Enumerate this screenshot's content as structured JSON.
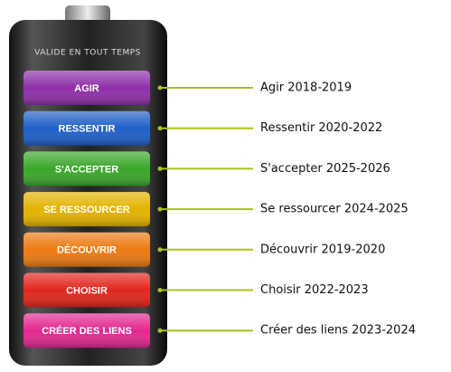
{
  "battery": {
    "label": "VALIDE EN TOUT TEMPS"
  },
  "segments": [
    {
      "name": "AGIR",
      "color": "#8e2fa8",
      "caption": "Agir 2018-2019"
    },
    {
      "name": "RESSENTIR",
      "color": "#1f5fc8",
      "caption": "Ressentir 2020-2022"
    },
    {
      "name": "S'ACCEPTER",
      "color": "#3aa62a",
      "caption": "S'accepter 2025-2026"
    },
    {
      "name": "SE RESSOURCER",
      "color": "#e3b300",
      "caption": "Se ressourcer 2024-2025"
    },
    {
      "name": "DÉCOUVRIR",
      "color": "#ec7a12",
      "caption": "Découvrir 2019-2020"
    },
    {
      "name": "CHOISIR",
      "color": "#e0261c",
      "caption": "Choisir 2022-2023"
    },
    {
      "name": "CRÉER DES LIENS",
      "color": "#e2288f",
      "caption": "Créer des liens 2023-2024"
    }
  ]
}
